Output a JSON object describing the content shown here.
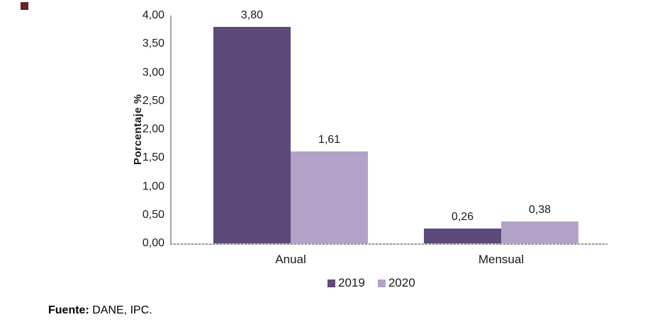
{
  "chart_data": {
    "type": "bar",
    "categories": [
      "Anual",
      "Mensual"
    ],
    "series": [
      {
        "name": "2019",
        "color": "#5d4a7b",
        "values": [
          3.8,
          0.26
        ],
        "value_labels": [
          "3,80",
          "0,26"
        ]
      },
      {
        "name": "2020",
        "color": "#b3a2c7",
        "values": [
          1.61,
          0.38
        ],
        "value_labels": [
          "1,61",
          "0,38"
        ]
      }
    ],
    "title": "",
    "xlabel": "",
    "ylabel": "Porcentaje %",
    "ylim": [
      0,
      4
    ],
    "ytick_labels": [
      "4,00",
      "3,50",
      "3,00",
      "2,50",
      "2,00",
      "1,50",
      "1,00",
      "0,50",
      "0,00"
    ],
    "grid": false,
    "legend_position": "bottom",
    "axis_color": "#a6a6a6"
  },
  "footer": {
    "bold": "Fuente:",
    "rest": " DANE, IPC."
  },
  "decoration": {
    "bullet_color": "#632423"
  }
}
